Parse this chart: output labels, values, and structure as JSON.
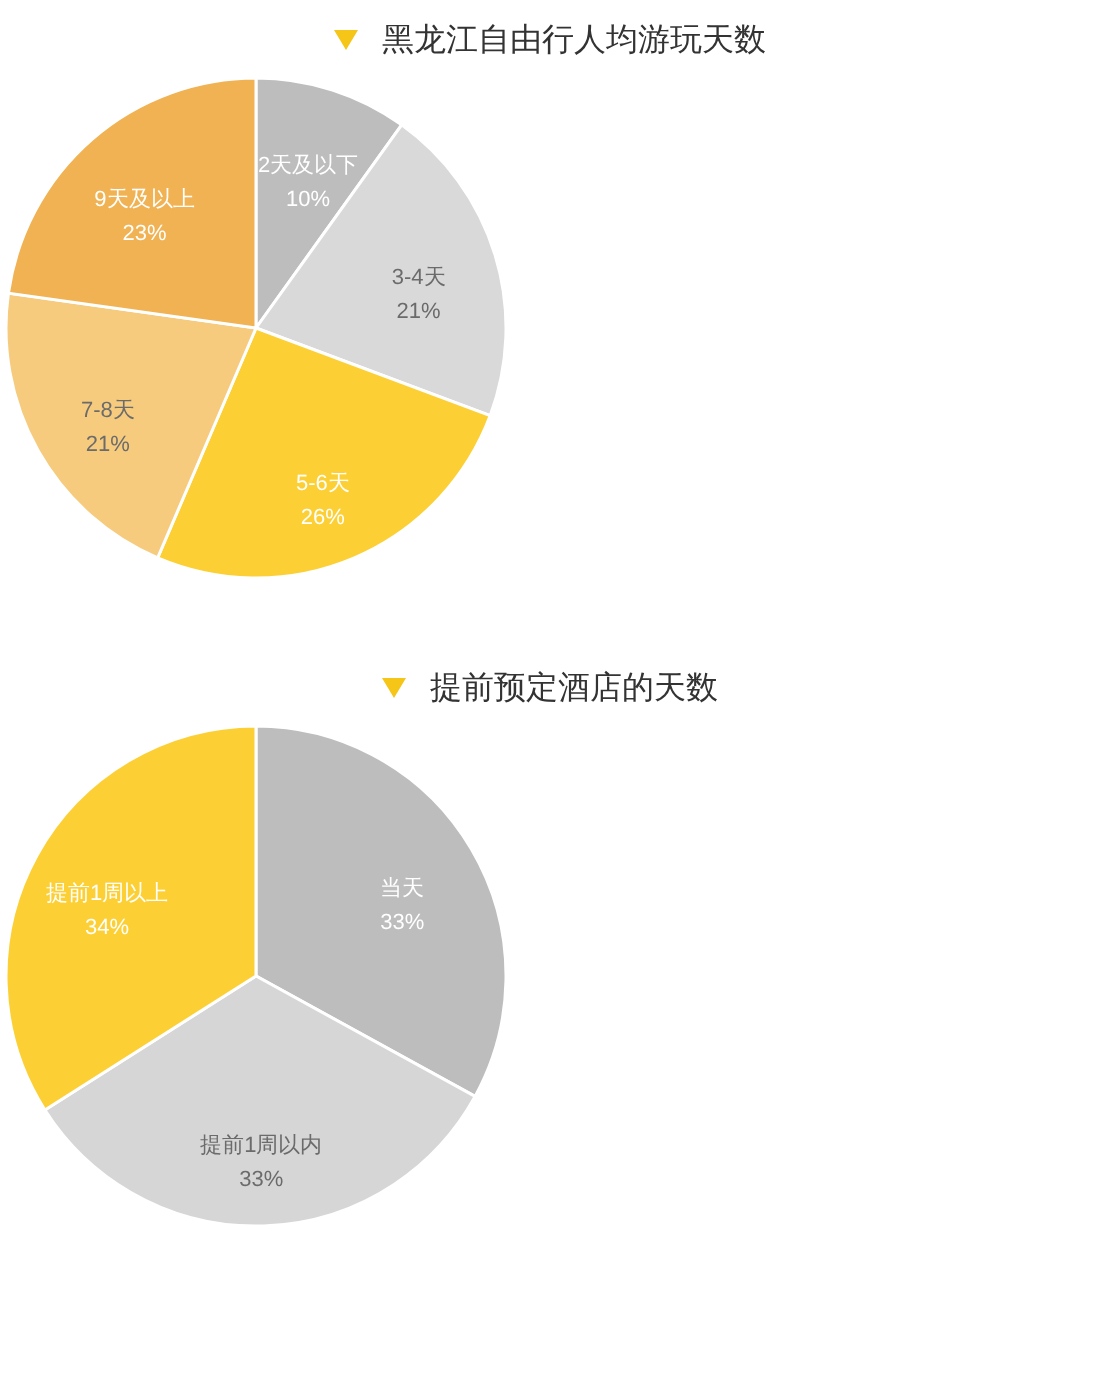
{
  "chart_data": [
    {
      "type": "pie",
      "title": "黑龙江自由行人均游玩天数",
      "categories": [
        "2天及以下",
        "3-4天",
        "5-6天",
        "7-8天",
        "9天及以上"
      ],
      "values": [
        10,
        21,
        26,
        21,
        23
      ],
      "colors": [
        "#bdbdbd",
        "#d9d9d9",
        "#fcd035",
        "#f6cb7e",
        "#f0b252"
      ],
      "value_labels": [
        "10%",
        "21%",
        "26%",
        "21%",
        "23%"
      ],
      "legend": false
    },
    {
      "type": "pie",
      "title": "提前预定酒店的天数",
      "categories": [
        "当天",
        "提前1周以内",
        "提前1周以上"
      ],
      "values": [
        33,
        33,
        34
      ],
      "colors": [
        "#bdbdbd",
        "#d6d6d6",
        "#fcd035"
      ],
      "value_labels": [
        "33%",
        "33%",
        "34%"
      ],
      "legend": false
    }
  ]
}
